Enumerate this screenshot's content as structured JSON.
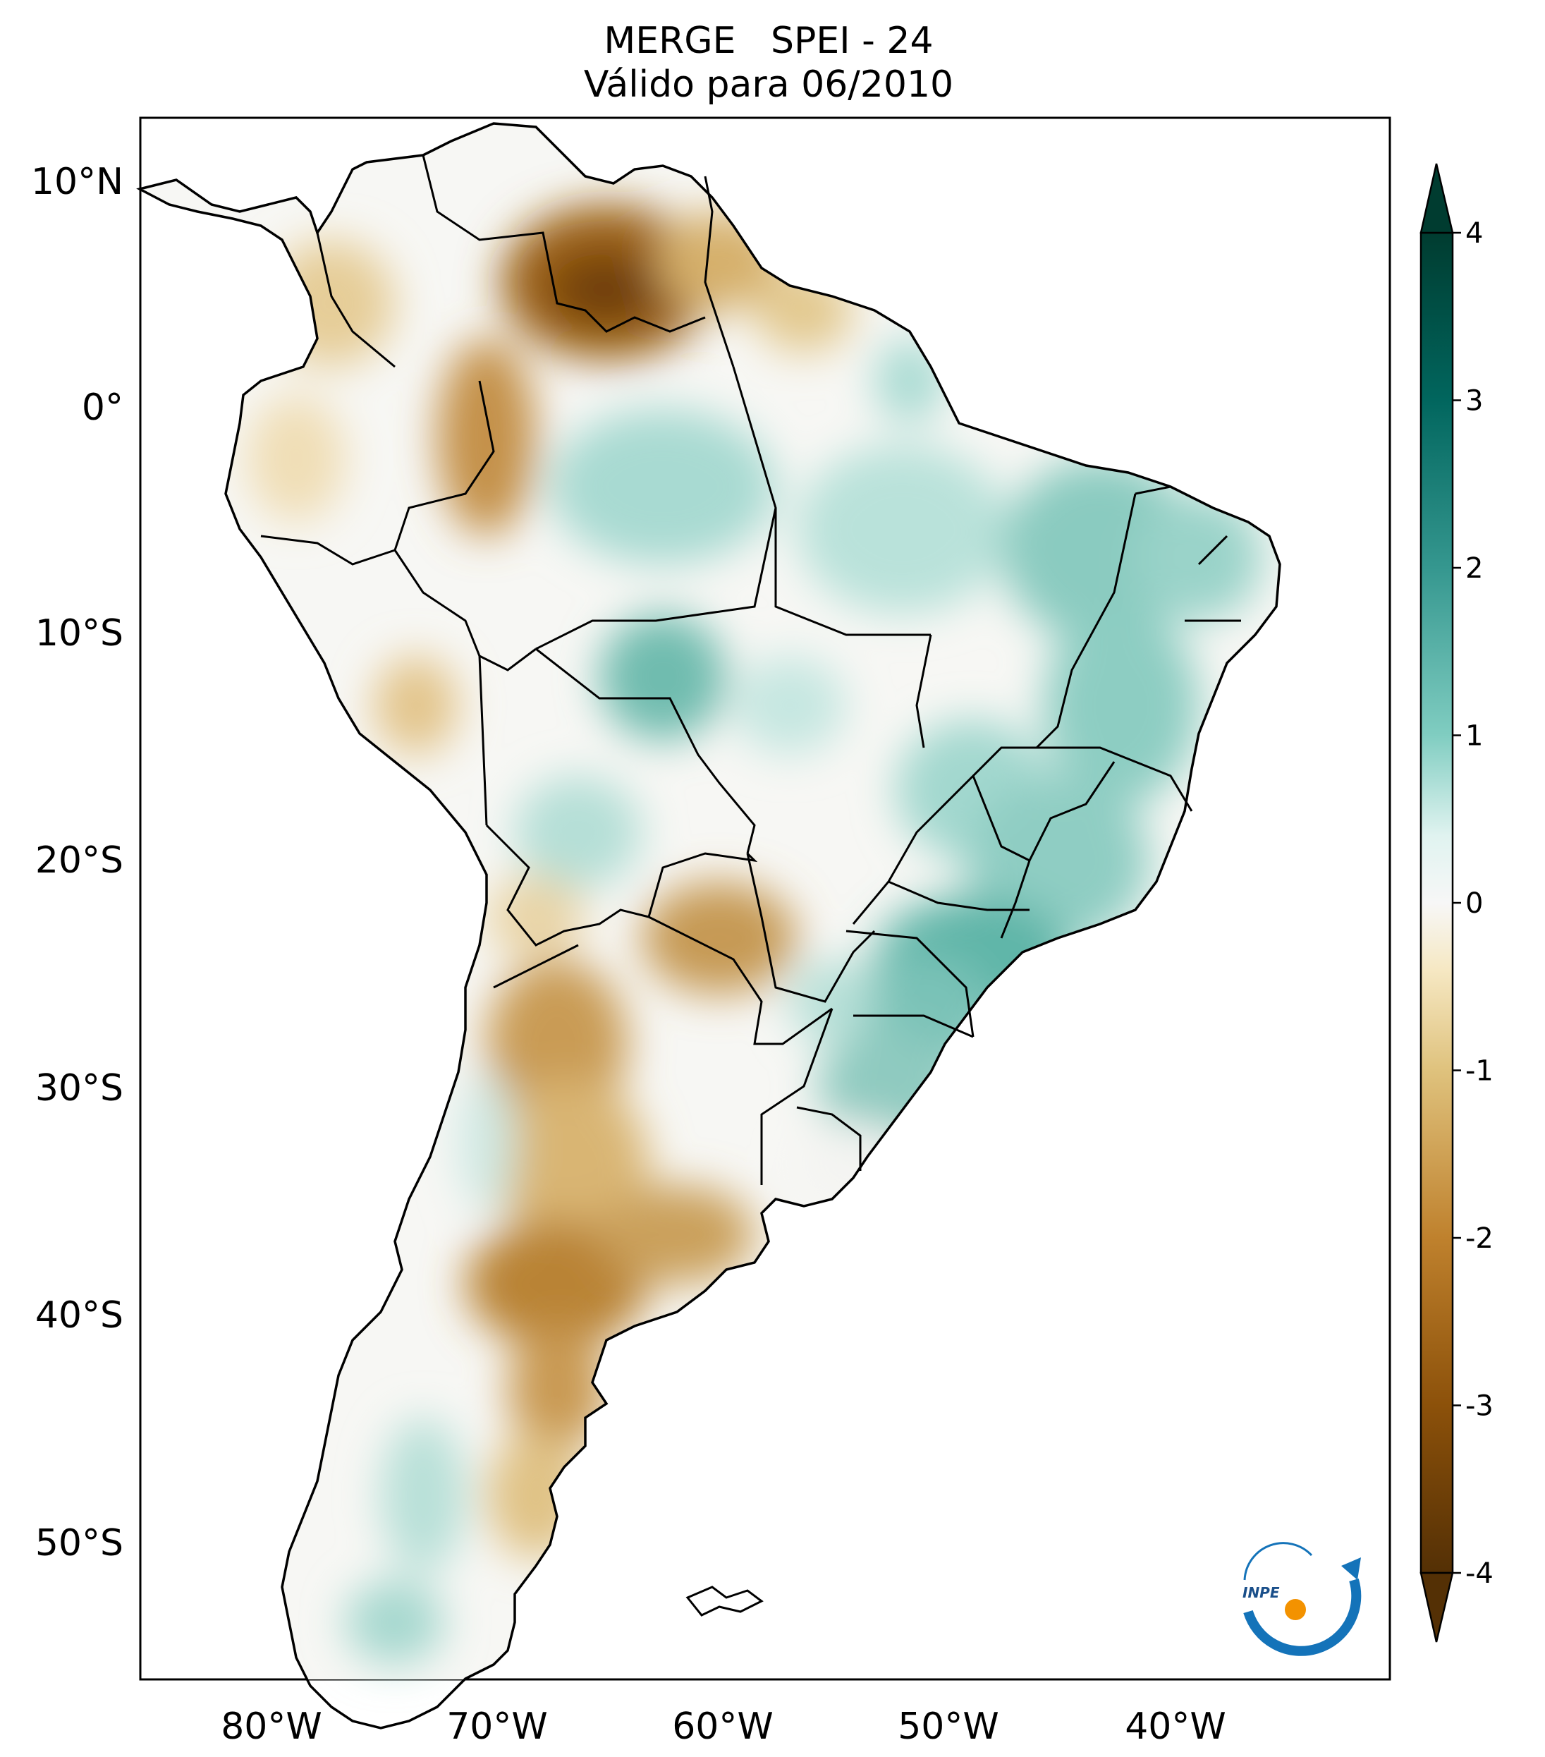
{
  "title": {
    "line1": "MERGE   SPEI - 24",
    "line2": "Válido para 06/2010"
  },
  "axes": {
    "lon_ticks": [
      "80°W",
      "70°W",
      "60°W",
      "50°W",
      "40°W"
    ],
    "lat_ticks": [
      "10°N",
      "0°",
      "10°S",
      "20°S",
      "30°S",
      "40°S",
      "50°S"
    ]
  },
  "colorbar": {
    "labels": [
      "4",
      "3",
      "2",
      "1",
      "0",
      "-1",
      "-2",
      "-3",
      "-4"
    ],
    "min": -4,
    "max": 4,
    "extend": "both",
    "colors": {
      "max": "#003c30",
      "high": "#01665e",
      "mid_high": "#5ab4ac",
      "low_high": "#c7eae5",
      "zero": "#f5f5f5",
      "low_low": "#f6e8c3",
      "mid_low": "#d8b365",
      "low": "#8c510a",
      "min": "#543005"
    }
  },
  "logo": {
    "text": "INPE",
    "colors": {
      "blue": "#1473b9",
      "orange": "#f39200"
    }
  }
}
